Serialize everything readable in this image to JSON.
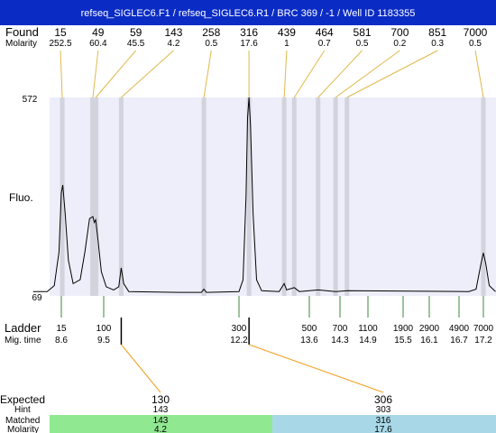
{
  "title": "refseq_SIGLEC6.F1 / refseq_SIGLEC6.R1 / BRC 369 / -1 / Well ID 1183355",
  "labels": {
    "found": "Found",
    "molarity": "Molarity",
    "fluo": "Fluo.",
    "ladder": "Ladder",
    "mig_time": "Mig. time",
    "expected": "Expected",
    "hint": "Hint",
    "matched": "Matched",
    "molarity_bottom": "Molarity"
  },
  "colors": {
    "title_bar": "#0b2cc4",
    "plot_bg": "#eeeefa",
    "peak_band": "#d3d3de",
    "trace": "#000000",
    "found_connector": "#e0b84a",
    "ladder_connector": "#3a8a3a",
    "expected_connector": "#f0a020",
    "matched_green": "#90e890",
    "matched_blue": "#a8d8e8"
  },
  "chart_data": {
    "type": "line",
    "ylabel": "Fluo.",
    "ylim": [
      69,
      572
    ],
    "y_ticks": [
      "572",
      "69"
    ],
    "found_peaks": [
      {
        "size": "15",
        "molarity": "252.5",
        "time": 8.62
      },
      {
        "size": "49",
        "molarity": "60.4",
        "time": 9.27
      },
      {
        "size": "59",
        "molarity": "45.5",
        "time": 9.33
      },
      {
        "size": "143",
        "molarity": "4.2",
        "time": 9.85
      },
      {
        "size": "258",
        "molarity": "0.5",
        "time": 11.5
      },
      {
        "size": "316",
        "molarity": "17.6",
        "time": 12.4
      },
      {
        "size": "439",
        "molarity": "1",
        "time": 13.1
      },
      {
        "size": "464",
        "molarity": "0.7",
        "time": 13.3
      },
      {
        "size": "581",
        "molarity": "0.5",
        "time": 13.8
      },
      {
        "size": "700",
        "molarity": "0.2",
        "time": 14.2
      },
      {
        "size": "851",
        "molarity": "0.3",
        "time": 14.45
      },
      {
        "size": "7000",
        "molarity": "0.5",
        "time": 17.2
      }
    ],
    "ladder": [
      {
        "size": "15",
        "time": "8.6"
      },
      {
        "size": "100",
        "time": "9.5"
      },
      {
        "size": "300",
        "time": "12.2"
      },
      {
        "size": "500",
        "time": "13.6"
      },
      {
        "size": "700",
        "time": "14.3"
      },
      {
        "size": "1100",
        "time": "14.9"
      },
      {
        "size": "1900",
        "time": "15.5"
      },
      {
        "size": "2900",
        "time": "16.1"
      },
      {
        "size": "4900",
        "time": "16.7"
      },
      {
        "size": "7000",
        "time": "17.2"
      }
    ],
    "trace": [
      [
        8.0,
        80
      ],
      [
        8.3,
        80
      ],
      [
        8.45,
        95
      ],
      [
        8.55,
        180
      ],
      [
        8.6,
        330
      ],
      [
        8.63,
        350
      ],
      [
        8.68,
        280
      ],
      [
        8.75,
        160
      ],
      [
        8.85,
        100
      ],
      [
        9.0,
        110
      ],
      [
        9.1,
        180
      ],
      [
        9.2,
        265
      ],
      [
        9.27,
        270
      ],
      [
        9.3,
        255
      ],
      [
        9.33,
        262
      ],
      [
        9.38,
        210
      ],
      [
        9.45,
        130
      ],
      [
        9.55,
        92
      ],
      [
        9.7,
        84
      ],
      [
        9.8,
        92
      ],
      [
        9.85,
        140
      ],
      [
        9.9,
        100
      ],
      [
        10.0,
        80
      ],
      [
        11.0,
        78
      ],
      [
        11.45,
        78
      ],
      [
        11.5,
        86
      ],
      [
        11.55,
        78
      ],
      [
        12.2,
        80
      ],
      [
        12.28,
        110
      ],
      [
        12.34,
        320
      ],
      [
        12.37,
        520
      ],
      [
        12.4,
        572
      ],
      [
        12.43,
        500
      ],
      [
        12.48,
        280
      ],
      [
        12.55,
        110
      ],
      [
        12.65,
        82
      ],
      [
        13.0,
        80
      ],
      [
        13.1,
        100
      ],
      [
        13.15,
        84
      ],
      [
        13.3,
        90
      ],
      [
        13.4,
        80
      ],
      [
        13.8,
        84
      ],
      [
        14.2,
        80
      ],
      [
        14.45,
        82
      ],
      [
        16.9,
        80
      ],
      [
        17.05,
        86
      ],
      [
        17.15,
        150
      ],
      [
        17.2,
        178
      ],
      [
        17.25,
        150
      ],
      [
        17.32,
        95
      ],
      [
        17.45,
        80
      ]
    ],
    "expected": [
      {
        "expected": "130",
        "hint": "143",
        "matched": "143",
        "molarity": "4.2",
        "time": 9.85
      },
      {
        "expected": "306",
        "hint": "303",
        "matched": "316",
        "molarity": "17.6",
        "time": 12.4
      }
    ]
  }
}
